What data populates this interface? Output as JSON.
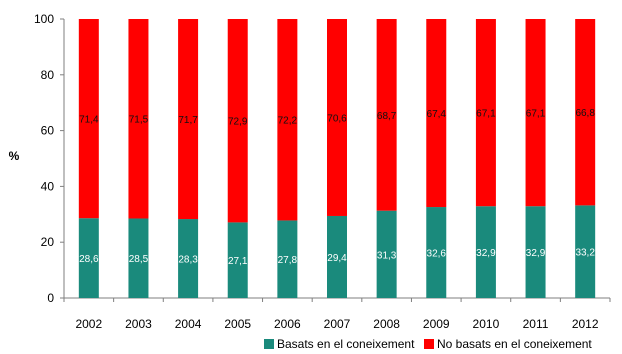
{
  "chart_data": {
    "type": "bar",
    "stacked": true,
    "title": "",
    "xlabel": "",
    "ylabel": "%",
    "ylim": [
      0,
      100
    ],
    "yticks": [
      0,
      20,
      40,
      60,
      80,
      100
    ],
    "categories": [
      "2002",
      "2003",
      "2004",
      "2005",
      "2006",
      "2007",
      "2008",
      "2009",
      "2010",
      "2011",
      "2012"
    ],
    "series": [
      {
        "name": "Basats en el coneixement",
        "color": "#1a8a7c",
        "values": [
          28.6,
          28.5,
          28.3,
          27.1,
          27.8,
          29.4,
          31.3,
          32.6,
          32.9,
          32.9,
          33.2
        ],
        "labels": [
          "28,6",
          "28,5",
          "28,3",
          "27,1",
          "27,8",
          "29,4",
          "31,3",
          "32,6",
          "32,9",
          "32,9",
          "33,2"
        ]
      },
      {
        "name": "No basats en el coneixement",
        "color": "#ff0000",
        "values": [
          71.4,
          71.5,
          71.7,
          72.9,
          72.2,
          70.6,
          68.7,
          67.4,
          67.1,
          67.1,
          66.8
        ],
        "labels": [
          "71,4",
          "71,5",
          "71,7",
          "72,9",
          "72,2",
          "70,6",
          "68,7",
          "67,4",
          "67,1",
          "67,1",
          "66,8"
        ]
      }
    ],
    "grid": false,
    "legend_position": "bottom-right"
  }
}
